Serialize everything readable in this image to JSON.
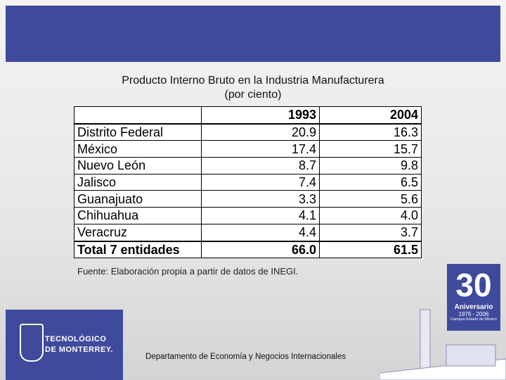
{
  "title": "Producto Interno Bruto en la Industria Manufacturera",
  "subtitle": "(por ciento)",
  "table": {
    "columns": [
      "1993",
      "2004"
    ],
    "rows": [
      [
        "Distrito Federal",
        "20.9",
        "16.3"
      ],
      [
        "México",
        "17.4",
        "15.7"
      ],
      [
        "Nuevo León",
        "8.7",
        "9.8"
      ],
      [
        "Jalisco",
        "7.4",
        "6.5"
      ],
      [
        "Guanajuato",
        "3.3",
        "5.6"
      ],
      [
        "Chihuahua",
        "4.1",
        "4.0"
      ],
      [
        "Veracruz",
        "4.4",
        "3.7"
      ],
      [
        "Total 7 entidades",
        "66.0",
        "61.5"
      ]
    ]
  },
  "source": "Fuente: Elaboración propia a partir de datos de INEGI.",
  "footer": "Departamento de Economía y Negocios Internacionales",
  "logo": {
    "line1": "TECNOLÓGICO",
    "line2": "DE MONTERREY."
  },
  "badge": {
    "number": "30",
    "label": "Aniversario",
    "years": "1976 - 2006",
    "campus": "Campus Estado de México"
  }
}
